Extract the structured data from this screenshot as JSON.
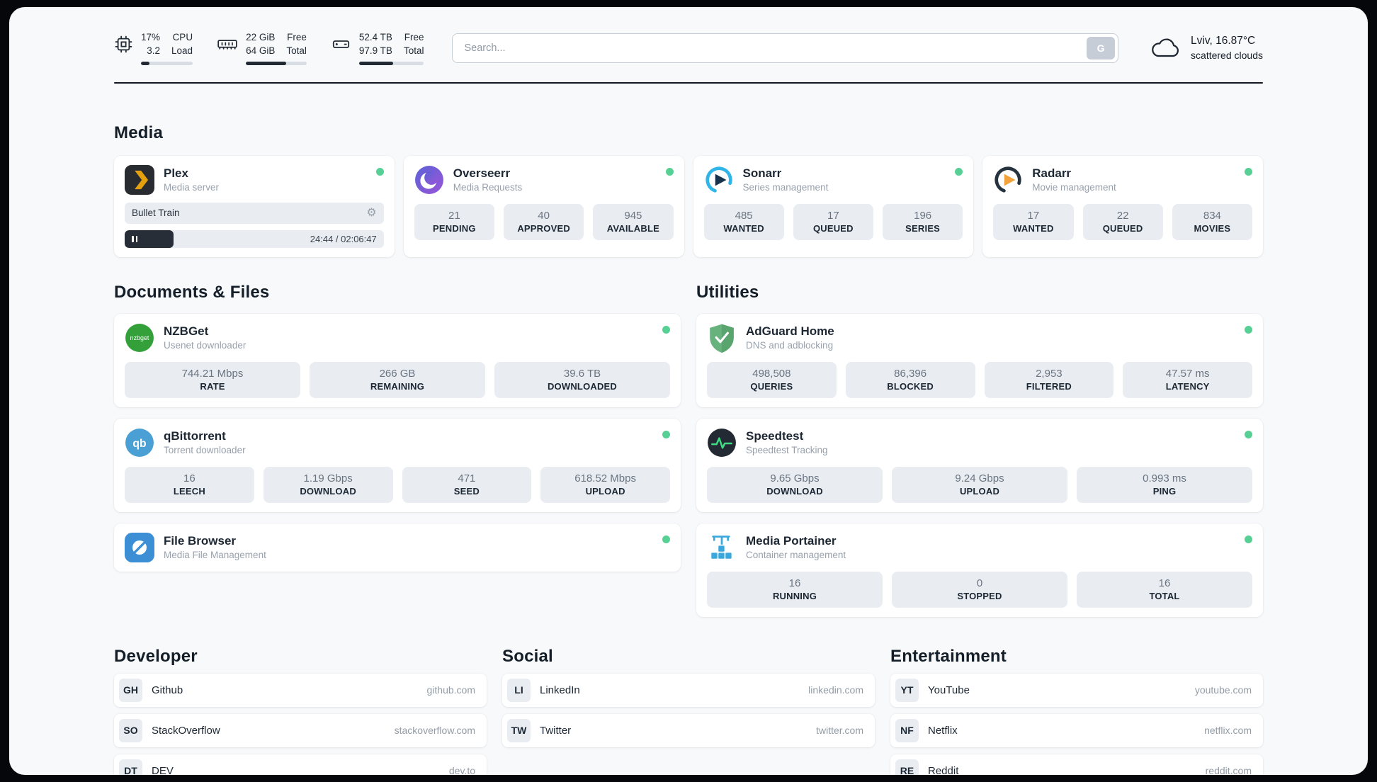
{
  "topbar": {
    "cpu": {
      "value_top": "17%",
      "value_bottom": "3.2",
      "label_top": "CPU",
      "label_bottom": "Load",
      "bar_width": "17%"
    },
    "ram": {
      "value_top": "22 GiB",
      "value_bottom": "64 GiB",
      "label_top": "Free",
      "label_bottom": "Total",
      "bar_width": "66%"
    },
    "disk": {
      "value_top": "52.4 TB",
      "value_bottom": "97.9 TB",
      "label_top": "Free",
      "label_bottom": "Total",
      "bar_width": "53%"
    },
    "search": {
      "placeholder": "Search...",
      "button_label": "G"
    },
    "weather": {
      "location": "Lviv, 16.87°C",
      "condition": "scattered clouds"
    }
  },
  "section_titles": {
    "media": "Media",
    "documents": "Documents & Files",
    "utilities": "Utilities",
    "developer": "Developer",
    "social": "Social",
    "entertainment": "Entertainment"
  },
  "apps": {
    "plex": {
      "name": "Plex",
      "subtitle": "Media server",
      "now_playing": "Bullet Train",
      "time": "24:44 / 02:06:47",
      "progress_width": "19%"
    },
    "overseerr": {
      "name": "Overseerr",
      "subtitle": "Media Requests",
      "stats": [
        {
          "value": "21",
          "label": "PENDING"
        },
        {
          "value": "40",
          "label": "APPROVED"
        },
        {
          "value": "945",
          "label": "AVAILABLE"
        }
      ]
    },
    "sonarr": {
      "name": "Sonarr",
      "subtitle": "Series management",
      "stats": [
        {
          "value": "485",
          "label": "WANTED"
        },
        {
          "value": "17",
          "label": "QUEUED"
        },
        {
          "value": "196",
          "label": "SERIES"
        }
      ]
    },
    "radarr": {
      "name": "Radarr",
      "subtitle": "Movie management",
      "stats": [
        {
          "value": "17",
          "label": "WANTED"
        },
        {
          "value": "22",
          "label": "QUEUED"
        },
        {
          "value": "834",
          "label": "MOVIES"
        }
      ]
    },
    "nzbget": {
      "name": "NZBGet",
      "subtitle": "Usenet downloader",
      "icon_text": "nzbget",
      "stats": [
        {
          "value": "744.21 Mbps",
          "label": "RATE"
        },
        {
          "value": "266 GB",
          "label": "REMAINING"
        },
        {
          "value": "39.6 TB",
          "label": "DOWNLOADED"
        }
      ]
    },
    "qbittorrent": {
      "name": "qBittorrent",
      "subtitle": "Torrent downloader",
      "icon_text": "qb",
      "stats": [
        {
          "value": "16",
          "label": "LEECH"
        },
        {
          "value": "1.19 Gbps",
          "label": "DOWNLOAD"
        },
        {
          "value": "471",
          "label": "SEED"
        },
        {
          "value": "618.52 Mbps",
          "label": "UPLOAD"
        }
      ]
    },
    "filebrowser": {
      "name": "File Browser",
      "subtitle": "Media File Management"
    },
    "adguard": {
      "name": "AdGuard Home",
      "subtitle": "DNS and adblocking",
      "stats": [
        {
          "value": "498,508",
          "label": "QUERIES"
        },
        {
          "value": "86,396",
          "label": "BLOCKED"
        },
        {
          "value": "2,953",
          "label": "FILTERED"
        },
        {
          "value": "47.57 ms",
          "label": "LATENCY"
        }
      ]
    },
    "speedtest": {
      "name": "Speedtest",
      "subtitle": "Speedtest Tracking",
      "stats": [
        {
          "value": "9.65 Gbps",
          "label": "DOWNLOAD"
        },
        {
          "value": "9.24 Gbps",
          "label": "UPLOAD"
        },
        {
          "value": "0.993 ms",
          "label": "PING"
        }
      ]
    },
    "portainer": {
      "name": "Media Portainer",
      "subtitle": "Container management",
      "stats": [
        {
          "value": "16",
          "label": "RUNNING"
        },
        {
          "value": "0",
          "label": "STOPPED"
        },
        {
          "value": "16",
          "label": "TOTAL"
        }
      ]
    }
  },
  "links": {
    "developer": [
      {
        "abbr": "GH",
        "name": "Github",
        "url": "github.com"
      },
      {
        "abbr": "SO",
        "name": "StackOverflow",
        "url": "stackoverflow.com"
      },
      {
        "abbr": "DT",
        "name": "DEV",
        "url": "dev.to"
      }
    ],
    "social": [
      {
        "abbr": "LI",
        "name": "LinkedIn",
        "url": "linkedin.com"
      },
      {
        "abbr": "TW",
        "name": "Twitter",
        "url": "twitter.com"
      }
    ],
    "entertainment": [
      {
        "abbr": "YT",
        "name": "YouTube",
        "url": "youtube.com"
      },
      {
        "abbr": "NF",
        "name": "Netflix",
        "url": "netflix.com"
      },
      {
        "abbr": "RE",
        "name": "Reddit",
        "url": "reddit.com"
      }
    ]
  },
  "colors": {
    "accent_green": "#57d095",
    "stat_bg": "#e9edf2"
  }
}
